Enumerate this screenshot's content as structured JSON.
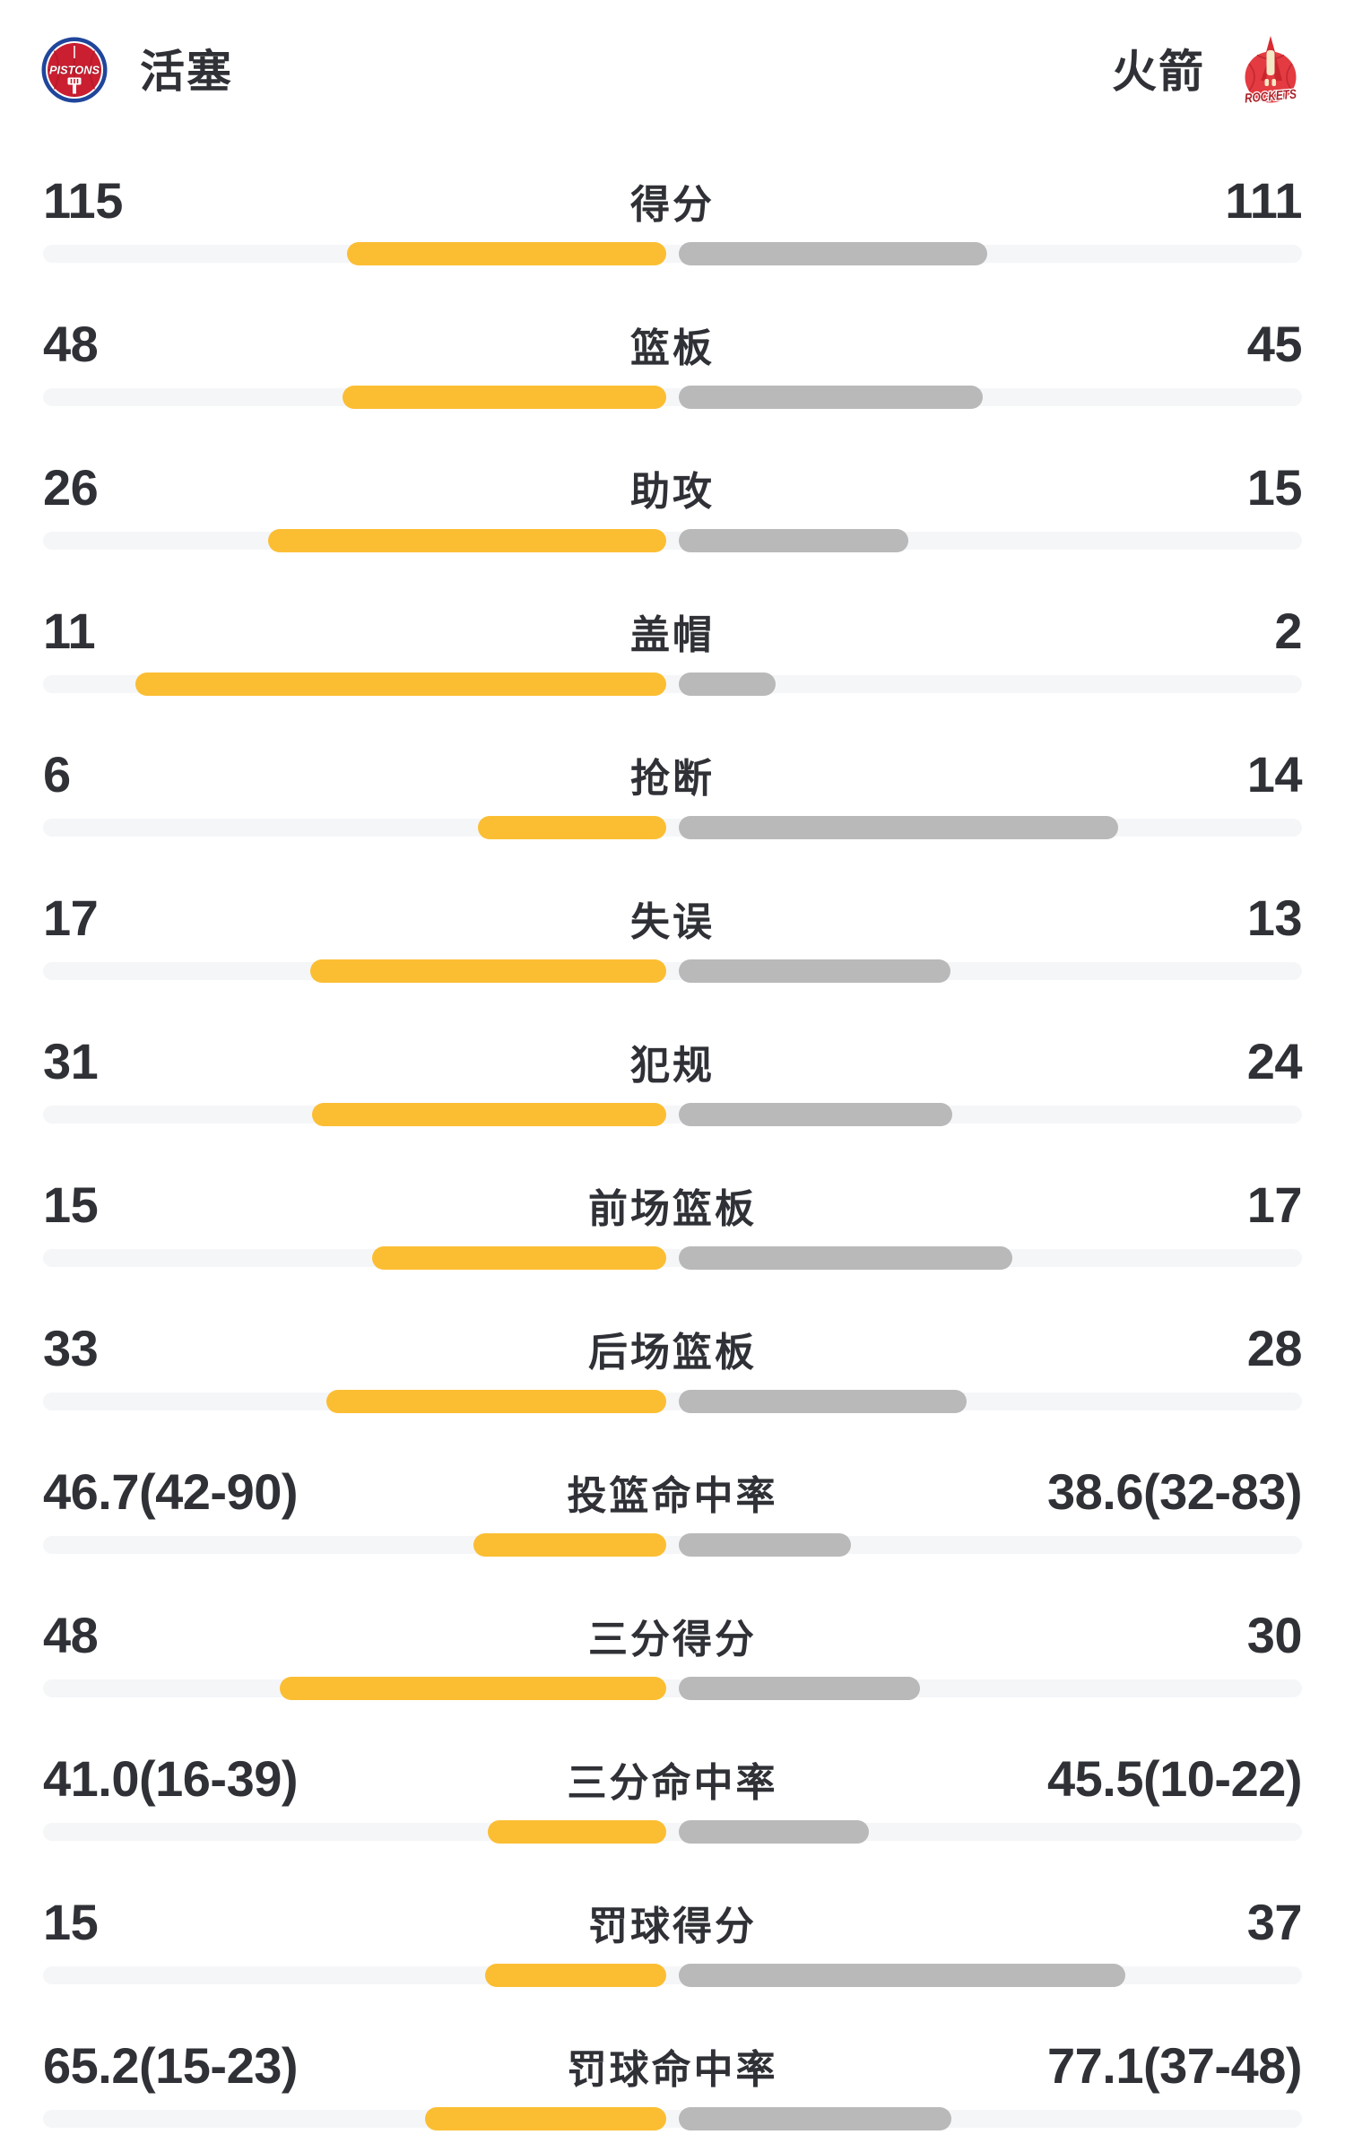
{
  "header": {
    "home": {
      "name": "活塞",
      "logo_text": "PISTONS"
    },
    "away": {
      "name": "火箭",
      "logo_text": "ROCKETS"
    }
  },
  "colors": {
    "home_bar": "#fbbe33",
    "away_bar": "#b9b9b9",
    "bar_track": "#f5f6f8",
    "text": "#2f3136",
    "pistons_blue": "#20469b",
    "pistons_red": "#ca1f30",
    "rockets_red": "#e33b41"
  },
  "chart_data": {
    "type": "bar",
    "orientation": "horizontal-paired",
    "legend": [
      "活塞",
      "火箭"
    ],
    "legend_position": "top",
    "grid": false,
    "categories": [
      "得分",
      "篮板",
      "助攻",
      "盖帽",
      "抢断",
      "失误",
      "犯规",
      "前场篮板",
      "后场篮板",
      "投篮命中率",
      "三分得分",
      "三分命中率",
      "罚球得分",
      "罚球命中率"
    ],
    "series": [
      {
        "name": "活塞",
        "values": [
          115,
          48,
          26,
          11,
          6,
          17,
          31,
          15,
          33,
          46.7,
          48,
          41.0,
          15,
          65.2
        ]
      },
      {
        "name": "火箭",
        "values": [
          111,
          45,
          15,
          2,
          14,
          13,
          24,
          17,
          28,
          38.6,
          30,
          45.5,
          37,
          77.1
        ]
      }
    ],
    "rows": [
      {
        "label": "得分",
        "home_text": "115",
        "away_text": "111",
        "home": 115,
        "away": 111,
        "kind": "count"
      },
      {
        "label": "篮板",
        "home_text": "48",
        "away_text": "45",
        "home": 48,
        "away": 45,
        "kind": "count"
      },
      {
        "label": "助攻",
        "home_text": "26",
        "away_text": "15",
        "home": 26,
        "away": 15,
        "kind": "count"
      },
      {
        "label": "盖帽",
        "home_text": "11",
        "away_text": "2",
        "home": 11,
        "away": 2,
        "kind": "count"
      },
      {
        "label": "抢断",
        "home_text": "6",
        "away_text": "14",
        "home": 6,
        "away": 14,
        "kind": "count"
      },
      {
        "label": "失误",
        "home_text": "17",
        "away_text": "13",
        "home": 17,
        "away": 13,
        "kind": "count"
      },
      {
        "label": "犯规",
        "home_text": "31",
        "away_text": "24",
        "home": 31,
        "away": 24,
        "kind": "count"
      },
      {
        "label": "前场篮板",
        "home_text": "15",
        "away_text": "17",
        "home": 15,
        "away": 17,
        "kind": "count"
      },
      {
        "label": "后场篮板",
        "home_text": "33",
        "away_text": "28",
        "home": 33,
        "away": 28,
        "kind": "count"
      },
      {
        "label": "投篮命中率",
        "home_text": "46.7(42-90)",
        "away_text": "38.6(32-83)",
        "home": 46.7,
        "away": 38.6,
        "kind": "rate"
      },
      {
        "label": "三分得分",
        "home_text": "48",
        "away_text": "30",
        "home": 48,
        "away": 30,
        "kind": "count"
      },
      {
        "label": "三分命中率",
        "home_text": "41.0(16-39)",
        "away_text": "45.5(10-22)",
        "home": 41.0,
        "away": 45.5,
        "kind": "rate"
      },
      {
        "label": "罚球得分",
        "home_text": "15",
        "away_text": "37",
        "home": 15,
        "away": 37,
        "kind": "count"
      },
      {
        "label": "罚球命中率",
        "home_text": "65.2(15-23)",
        "away_text": "77.1(37-48)",
        "home": 65.2,
        "away": 77.1,
        "kind": "rate"
      }
    ]
  }
}
